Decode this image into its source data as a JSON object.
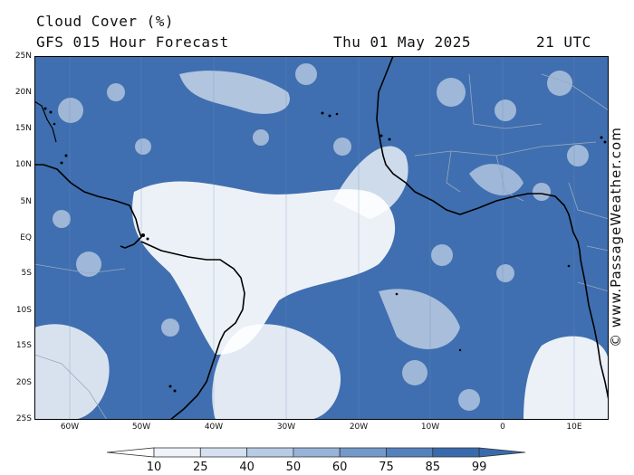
{
  "header": {
    "title": "Cloud Cover (%)",
    "subtitle": "GFS 015 Hour Forecast",
    "date": "Thu 01 May 2025",
    "time": "21 UTC"
  },
  "map": {
    "lat_labels": [
      "25N",
      "20N",
      "15N",
      "10N",
      "5N",
      "EQ",
      "5S",
      "10S",
      "15S",
      "20S",
      "25S"
    ],
    "lon_labels": [
      "60W",
      "50W",
      "40W",
      "30W",
      "20W",
      "10W",
      "0",
      "10E"
    ],
    "colors": {
      "ocean_cloud": "#3f6fb0",
      "land": "#4a78b8",
      "clear": "#ffffff",
      "coast": "#000000",
      "border": "#9aa8be"
    }
  },
  "credit": "© www.PassageWeather.com",
  "colorbar": {
    "labels": [
      "10",
      "25",
      "40",
      "50",
      "60",
      "75",
      "85",
      "99"
    ],
    "colors": [
      "#ffffff",
      "#eef3f9",
      "#d5e1f0",
      "#b8cbe5",
      "#97b3d8",
      "#7399c9",
      "#5482bd",
      "#3a6aae"
    ]
  }
}
